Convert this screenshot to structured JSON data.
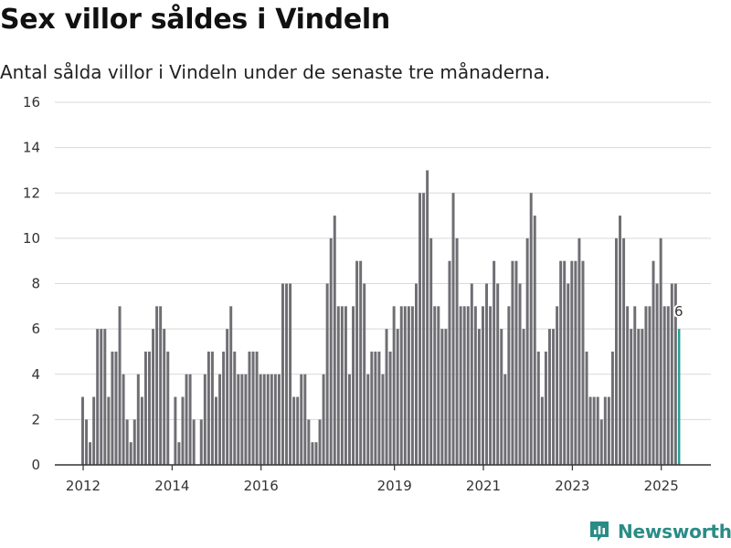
{
  "header": {
    "title": "Sex villor såldes i Vindeln",
    "subtitle": "Antal sålda villor i Vindeln under de senaste tre månaderna."
  },
  "brand": {
    "name": "Newsworthy",
    "color": "#2a8c86"
  },
  "colors": {
    "bar": "#6f6e73",
    "highlight": "#2a9d95",
    "grid": "#d9d9d9",
    "axis": "#333333"
  },
  "chart_data": {
    "type": "bar",
    "title": "Sex villor såldes i Vindeln",
    "subtitle": "Antal sålda villor i Vindeln under de senaste tre månaderna.",
    "xlabel": "",
    "ylabel": "",
    "ylim": [
      0,
      16
    ],
    "yticks": [
      0,
      2,
      4,
      6,
      8,
      10,
      12,
      14,
      16
    ],
    "x_range": [
      "2012-01",
      "2025-02"
    ],
    "xticks": [
      {
        "label": "2012",
        "month": "2012-01"
      },
      {
        "label": "2014",
        "month": "2014-01"
      },
      {
        "label": "2016",
        "month": "2016-01"
      },
      {
        "label": "2019",
        "month": "2019-01"
      },
      {
        "label": "2021",
        "month": "2021-01"
      },
      {
        "label": "2023",
        "month": "2023-01"
      },
      {
        "label": "2025",
        "month": "2025-01"
      }
    ],
    "grid": true,
    "last_label": "6",
    "values": [
      3,
      2,
      1,
      3,
      6,
      6,
      6,
      3,
      5,
      5,
      7,
      4,
      2,
      1,
      2,
      4,
      3,
      5,
      5,
      6,
      7,
      7,
      6,
      5,
      0,
      3,
      1,
      3,
      4,
      4,
      2,
      0,
      2,
      4,
      5,
      5,
      3,
      4,
      5,
      6,
      7,
      5,
      4,
      4,
      4,
      5,
      5,
      5,
      4,
      4,
      4,
      4,
      4,
      4,
      8,
      8,
      8,
      3,
      3,
      4,
      4,
      2,
      1,
      1,
      2,
      4,
      8,
      10,
      11,
      7,
      7,
      7,
      4,
      7,
      9,
      9,
      8,
      4,
      5,
      5,
      5,
      4,
      6,
      5,
      7,
      6,
      7,
      7,
      7,
      7,
      8,
      12,
      12,
      13,
      10,
      7,
      7,
      6,
      6,
      9,
      12,
      10,
      7,
      7,
      7,
      8,
      7,
      6,
      7,
      8,
      7,
      9,
      8,
      6,
      4,
      7,
      9,
      9,
      8,
      6,
      10,
      12,
      11,
      5,
      3,
      5,
      6,
      6,
      7,
      9,
      9,
      8,
      9,
      9,
      10,
      9,
      5,
      3,
      3,
      3,
      2,
      3,
      3,
      5,
      10,
      11,
      10,
      7,
      6,
      7,
      6,
      6,
      7,
      7,
      9,
      8,
      10,
      7,
      7,
      8,
      8,
      6
    ]
  }
}
